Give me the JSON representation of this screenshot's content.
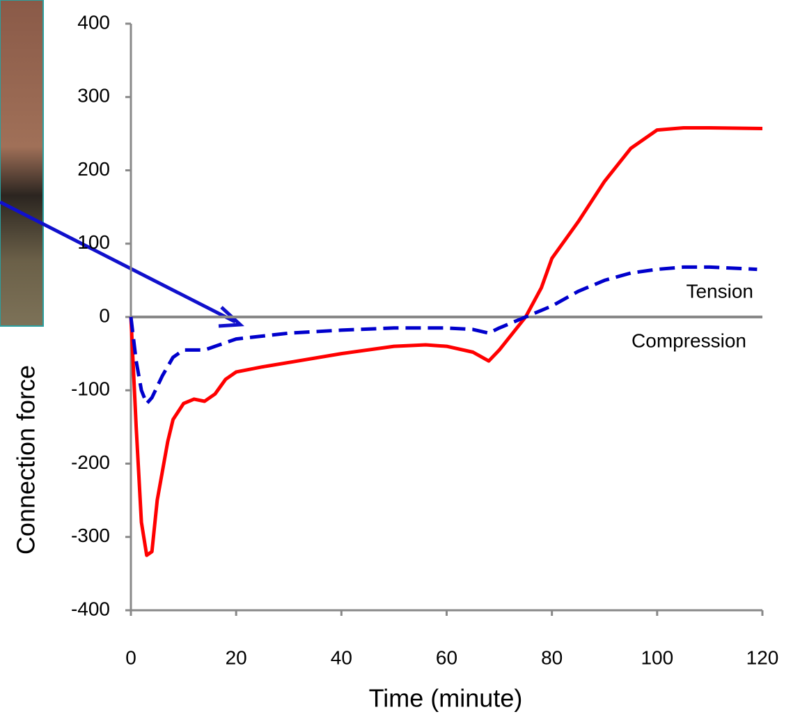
{
  "chart_data": {
    "type": "line",
    "xlabel": "Time (minute)",
    "ylabel": "Connection force",
    "xlim": [
      0,
      120
    ],
    "xticks": [
      0,
      20,
      40,
      60,
      80,
      100,
      120
    ],
    "ylim": [
      -400,
      400
    ],
    "yticks": [
      -400,
      -300,
      -200,
      -100,
      0,
      100,
      200,
      300,
      400
    ],
    "annotations": [
      "Tension",
      "Compression"
    ],
    "series": [
      {
        "color": "#ff0000",
        "dash": false,
        "x": [
          0,
          1,
          2,
          3,
          4,
          5,
          7,
          8,
          10,
          12,
          14,
          16,
          18,
          20,
          25,
          30,
          40,
          50,
          56,
          60,
          65,
          68,
          70,
          75,
          78,
          80,
          85,
          90,
          95,
          100,
          105,
          110,
          120
        ],
        "values": [
          0,
          -150,
          -280,
          -325,
          -320,
          -250,
          -170,
          -140,
          -118,
          -112,
          -115,
          -105,
          -85,
          -75,
          -68,
          -62,
          -50,
          -40,
          -38,
          -40,
          -48,
          -60,
          -45,
          0,
          40,
          80,
          130,
          185,
          230,
          255,
          258,
          258,
          257
        ]
      },
      {
        "color": "#0000cc",
        "dash": true,
        "x": [
          0,
          1,
          2,
          3,
          4,
          6,
          8,
          10,
          14,
          16,
          20,
          30,
          40,
          50,
          60,
          65,
          68,
          70,
          75,
          80,
          85,
          90,
          95,
          100,
          105,
          110,
          119
        ],
        "values": [
          0,
          -60,
          -100,
          -118,
          -110,
          -80,
          -55,
          -45,
          -45,
          -40,
          -30,
          -22,
          -18,
          -15,
          -15,
          -17,
          -22,
          -15,
          0,
          15,
          35,
          50,
          60,
          65,
          68,
          68,
          65
        ]
      }
    ]
  }
}
